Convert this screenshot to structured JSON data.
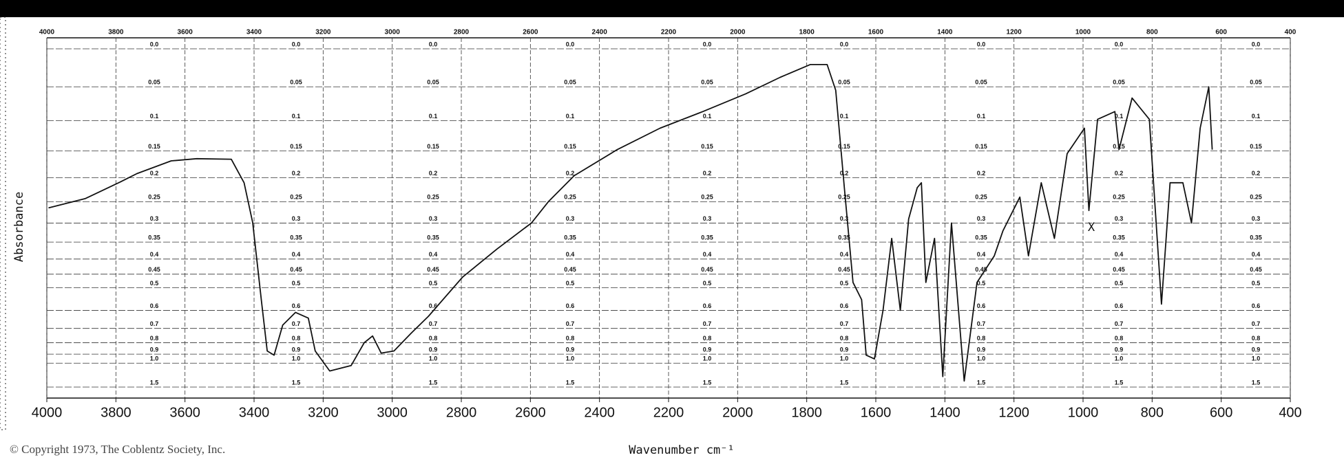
{
  "chart_data": {
    "type": "line",
    "y_label": "Absorbance",
    "x_label": "Wavenumber cm⁻¹",
    "copyright": "© Copyright 1973, The Coblentz Society, Inc.",
    "annotation": "X",
    "yscale": "absorbance",
    "grid": true,
    "color": "#111111",
    "xlim": [
      4000,
      400
    ],
    "xticks": [
      4000,
      3800,
      3600,
      3400,
      3200,
      3000,
      2800,
      2600,
      2400,
      2200,
      2000,
      1800,
      1600,
      1400,
      1200,
      1000,
      800,
      600,
      400
    ],
    "ylim": [
      0,
      1.5
    ],
    "yticks": [
      {
        "value": 0,
        "label": "0.0"
      },
      0.05,
      0.1,
      0.15,
      0.2,
      0.25,
      0.3,
      0.35,
      0.4,
      0.45,
      0.5,
      0.6,
      0.7,
      0.8,
      0.9,
      {
        "value": 1,
        "label": "1.0"
      },
      1.5
    ],
    "x": [
      3995,
      3888,
      3789,
      3739,
      3640,
      3566,
      3466,
      3429,
      3404,
      3379,
      3362,
      3342,
      3317,
      3280,
      3243,
      3223,
      3181,
      3119,
      3081,
      3057,
      3032,
      2995,
      2945,
      2895,
      2796,
      2697,
      2597,
      2548,
      2473,
      2349,
      2225,
      2101,
      1977,
      1877,
      1790,
      1741,
      1716,
      1691,
      1666,
      1641,
      1628,
      1604,
      1579,
      1554,
      1529,
      1505,
      1480,
      1468,
      1455,
      1430,
      1406,
      1381,
      1344,
      1307,
      1257,
      1232,
      1183,
      1158,
      1121,
      1083,
      1046,
      996,
      983,
      958,
      908,
      896,
      858,
      808,
      773,
      748,
      711,
      686,
      661,
      636,
      626
    ],
    "values": [
      0.264,
      0.243,
      0.209,
      0.192,
      0.168,
      0.164,
      0.165,
      0.21,
      0.299,
      0.55,
      0.87,
      0.91,
      0.68,
      0.61,
      0.64,
      0.87,
      1.11,
      1.03,
      0.8,
      0.75,
      0.89,
      0.87,
      0.73,
      0.63,
      0.46,
      0.37,
      0.3,
      0.25,
      0.196,
      0.148,
      0.112,
      0.086,
      0.06,
      0.037,
      0.02,
      0.02,
      0.055,
      0.22,
      0.48,
      0.55,
      0.91,
      0.95,
      0.6,
      0.34,
      0.6,
      0.29,
      0.22,
      0.21,
      0.48,
      0.34,
      1.21,
      0.3,
      1.31,
      0.48,
      0.39,
      0.32,
      0.24,
      0.39,
      0.21,
      0.34,
      0.155,
      0.112,
      0.27,
      0.098,
      0.086,
      0.148,
      0.066,
      0.098,
      0.57,
      0.21,
      0.21,
      0.3,
      0.112,
      0.05,
      0.148
    ]
  }
}
